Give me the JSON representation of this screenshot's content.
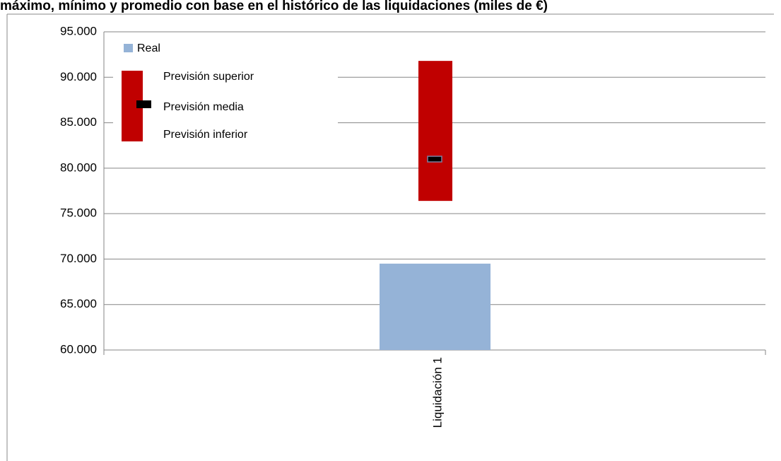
{
  "chart_data": {
    "type": "bar",
    "title": "máximo, mínimo y promedio con base en el histórico de las liquidaciones (miles de €)",
    "categories": [
      "Liquidación 1"
    ],
    "series": [
      {
        "name": "Real",
        "color": "#95b3d7",
        "values": [
          69500
        ]
      },
      {
        "name": "Previsión superior",
        "color": "#c00000",
        "values": [
          91800
        ]
      },
      {
        "name": "Previsión media",
        "color": "#000000",
        "values": [
          81000
        ]
      },
      {
        "name": "Previsión inferior",
        "color": "#c00000",
        "values": [
          76400
        ]
      }
    ],
    "ylim": [
      60000,
      95000
    ],
    "yticks": [
      {
        "value": 60000,
        "label": "60.000"
      },
      {
        "value": 65000,
        "label": "65.000"
      },
      {
        "value": 70000,
        "label": "70.000"
      },
      {
        "value": 75000,
        "label": "75.000"
      },
      {
        "value": 80000,
        "label": "80.000"
      },
      {
        "value": 85000,
        "label": "85.000"
      },
      {
        "value": 90000,
        "label": "90.000"
      },
      {
        "value": 95000,
        "label": "95.000"
      }
    ],
    "grid": true
  }
}
